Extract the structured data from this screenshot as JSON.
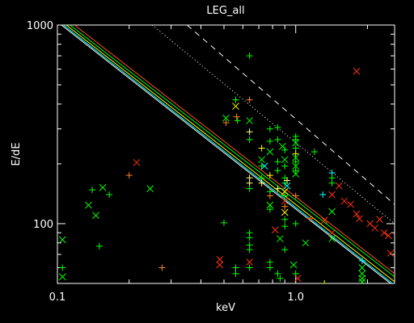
{
  "chart_data": {
    "type": "scatter",
    "title": "LEG_all",
    "xlabel": "keV",
    "ylabel": "E/dE",
    "x_scale": "log",
    "y_scale": "log",
    "xlim": [
      0.1,
      2.6
    ],
    "ylim": [
      50,
      1000
    ],
    "x_ticks": [
      {
        "value": 0.1,
        "label": "0.1"
      },
      {
        "value": 1.0,
        "label": "1.0"
      }
    ],
    "y_ticks": [
      {
        "value": 100,
        "label": "100"
      },
      {
        "value": 1000,
        "label": "1000"
      }
    ],
    "grid": false,
    "lines": [
      {
        "style": "solid",
        "color": "#ffffff",
        "points": [
          [
            0.104,
            1000
          ],
          [
            2.5,
            50
          ]
        ]
      },
      {
        "style": "solid",
        "color": "#ffff00",
        "points": [
          [
            0.109,
            1000
          ],
          [
            2.6,
            51
          ]
        ]
      },
      {
        "style": "solid",
        "color": "#00ff00",
        "points": [
          [
            0.113,
            1000
          ],
          [
            2.6,
            54
          ]
        ]
      },
      {
        "style": "solid",
        "color": "#ff5020",
        "points": [
          [
            0.118,
            1000
          ],
          [
            2.6,
            56
          ]
        ]
      },
      {
        "style": "solid",
        "color": "#00ffff",
        "points": [
          [
            0.106,
            1000
          ],
          [
            2.55,
            50
          ]
        ]
      },
      {
        "style": "dotted",
        "color": "#ffffff",
        "points": [
          [
            0.25,
            1000
          ],
          [
            2.6,
            100
          ]
        ]
      },
      {
        "style": "dashed",
        "color": "#ffffff",
        "points": [
          [
            0.35,
            1000
          ],
          [
            2.6,
            125
          ]
        ]
      }
    ],
    "points": [
      {
        "x": 0.105,
        "y": 83,
        "m": "x",
        "c": "#00ff00"
      },
      {
        "x": 0.105,
        "y": 60,
        "m": "+",
        "c": "#00ff00"
      },
      {
        "x": 0.105,
        "y": 54,
        "m": "x",
        "c": "#00ff00"
      },
      {
        "x": 0.135,
        "y": 124,
        "m": "x",
        "c": "#00ff00"
      },
      {
        "x": 0.14,
        "y": 148,
        "m": "+",
        "c": "#00ff00"
      },
      {
        "x": 0.145,
        "y": 110,
        "m": "x",
        "c": "#00ff00"
      },
      {
        "x": 0.155,
        "y": 152,
        "m": "x",
        "c": "#00ff00"
      },
      {
        "x": 0.15,
        "y": 77,
        "m": "+",
        "c": "#00ff00"
      },
      {
        "x": 0.165,
        "y": 140,
        "m": "+",
        "c": "#00ff00"
      },
      {
        "x": 0.2,
        "y": 175,
        "m": "+",
        "c": "#ff8020"
      },
      {
        "x": 0.215,
        "y": 203,
        "m": "x",
        "c": "#ff3010"
      },
      {
        "x": 0.245,
        "y": 150,
        "m": "x",
        "c": "#00ff00"
      },
      {
        "x": 0.275,
        "y": 60,
        "m": "+",
        "c": "#ff8020"
      },
      {
        "x": 0.48,
        "y": 66,
        "m": "x",
        "c": "#ff3010"
      },
      {
        "x": 0.48,
        "y": 62,
        "m": "x",
        "c": "#ff3010"
      },
      {
        "x": 0.5,
        "y": 101,
        "m": "+",
        "c": "#00ff00"
      },
      {
        "x": 0.51,
        "y": 340,
        "m": "x",
        "c": "#00ff00"
      },
      {
        "x": 0.51,
        "y": 322,
        "m": "+",
        "c": "#ff8020"
      },
      {
        "x": 0.56,
        "y": 390,
        "m": "x",
        "c": "#ffff00"
      },
      {
        "x": 0.56,
        "y": 420,
        "m": "+",
        "c": "#00ff00"
      },
      {
        "x": 0.565,
        "y": 345,
        "m": "+",
        "c": "#ff8020"
      },
      {
        "x": 0.57,
        "y": 330,
        "m": "+",
        "c": "#00ff00"
      },
      {
        "x": 0.56,
        "y": 60,
        "m": "+",
        "c": "#00ff00"
      },
      {
        "x": 0.56,
        "y": 56,
        "m": "+",
        "c": "#00ff00"
      },
      {
        "x": 0.64,
        "y": 700,
        "m": "+",
        "c": "#00ff00"
      },
      {
        "x": 0.64,
        "y": 420,
        "m": "+",
        "c": "#ff8020"
      },
      {
        "x": 0.64,
        "y": 330,
        "m": "x",
        "c": "#00ff00"
      },
      {
        "x": 0.64,
        "y": 290,
        "m": "+",
        "c": "#ffff80"
      },
      {
        "x": 0.64,
        "y": 265,
        "m": "+",
        "c": "#00ff00"
      },
      {
        "x": 0.64,
        "y": 170,
        "m": "+",
        "c": "#ffff80"
      },
      {
        "x": 0.64,
        "y": 160,
        "m": "+",
        "c": "#ffff80"
      },
      {
        "x": 0.64,
        "y": 150,
        "m": "+",
        "c": "#00ff00"
      },
      {
        "x": 0.64,
        "y": 90,
        "m": "+",
        "c": "#00ff00"
      },
      {
        "x": 0.64,
        "y": 85,
        "m": "+",
        "c": "#00ff00"
      },
      {
        "x": 0.64,
        "y": 78,
        "m": "+",
        "c": "#00ff00"
      },
      {
        "x": 0.64,
        "y": 74,
        "m": "+",
        "c": "#00ff00"
      },
      {
        "x": 0.64,
        "y": 64,
        "m": "x",
        "c": "#ff3010"
      },
      {
        "x": 0.64,
        "y": 60,
        "m": "+",
        "c": "#00ff00"
      },
      {
        "x": 0.72,
        "y": 240,
        "m": "+",
        "c": "#ffff00"
      },
      {
        "x": 0.72,
        "y": 210,
        "m": "x",
        "c": "#00ff00"
      },
      {
        "x": 0.72,
        "y": 195,
        "m": "+",
        "c": "#00ff00"
      },
      {
        "x": 0.72,
        "y": 170,
        "m": "+",
        "c": "#00ff00"
      },
      {
        "x": 0.72,
        "y": 160,
        "m": "+",
        "c": "#ffff80"
      },
      {
        "x": 0.74,
        "y": 195,
        "m": "x",
        "c": "#00ffff"
      },
      {
        "x": 0.78,
        "y": 300,
        "m": "+",
        "c": "#00ff00"
      },
      {
        "x": 0.78,
        "y": 260,
        "m": "+",
        "c": "#00ff00"
      },
      {
        "x": 0.78,
        "y": 230,
        "m": "x",
        "c": "#00ff00"
      },
      {
        "x": 0.78,
        "y": 175,
        "m": "+",
        "c": "#ffff00"
      },
      {
        "x": 0.78,
        "y": 145,
        "m": "+",
        "c": "#00ff00"
      },
      {
        "x": 0.78,
        "y": 138,
        "m": "+",
        "c": "#ff8020"
      },
      {
        "x": 0.78,
        "y": 124,
        "m": "x",
        "c": "#00ff00"
      },
      {
        "x": 0.78,
        "y": 118,
        "m": "+",
        "c": "#00ff00"
      },
      {
        "x": 0.78,
        "y": 64,
        "m": "+",
        "c": "#00ff00"
      },
      {
        "x": 0.78,
        "y": 60,
        "m": "+",
        "c": "#00ff00"
      },
      {
        "x": 0.84,
        "y": 305,
        "m": "+",
        "c": "#00ff00"
      },
      {
        "x": 0.84,
        "y": 265,
        "m": "+",
        "c": "#00ff00"
      },
      {
        "x": 0.84,
        "y": 205,
        "m": "+",
        "c": "#00ff00"
      },
      {
        "x": 0.84,
        "y": 185,
        "m": "+",
        "c": "#00ff00"
      },
      {
        "x": 0.84,
        "y": 150,
        "m": "+",
        "c": "#ffff80"
      },
      {
        "x": 0.82,
        "y": 93,
        "m": "x",
        "c": "#ff3010"
      },
      {
        "x": 0.86,
        "y": 84,
        "m": "x",
        "c": "#00ff00"
      },
      {
        "x": 0.84,
        "y": 56,
        "m": "+",
        "c": "#00ff00"
      },
      {
        "x": 0.86,
        "y": 53,
        "m": "+",
        "c": "#00ff00"
      },
      {
        "x": 0.88,
        "y": 245,
        "m": "x",
        "c": "#00ff00"
      },
      {
        "x": 0.9,
        "y": 235,
        "m": "+",
        "c": "#00ff00"
      },
      {
        "x": 0.9,
        "y": 210,
        "m": "x",
        "c": "#00ff00"
      },
      {
        "x": 0.9,
        "y": 195,
        "m": "+",
        "c": "#00ff00"
      },
      {
        "x": 0.9,
        "y": 170,
        "m": "+",
        "c": "#00ff00"
      },
      {
        "x": 0.9,
        "y": 160,
        "m": "+",
        "c": "#00ff00"
      },
      {
        "x": 0.9,
        "y": 145,
        "m": "x",
        "c": "#ffff00"
      },
      {
        "x": 0.9,
        "y": 138,
        "m": "+",
        "c": "#00ff00"
      },
      {
        "x": 0.9,
        "y": 130,
        "m": "x",
        "c": "#ff3010"
      },
      {
        "x": 0.9,
        "y": 122,
        "m": "+",
        "c": "#ff8020"
      },
      {
        "x": 0.9,
        "y": 114,
        "m": "x",
        "c": "#ffff00"
      },
      {
        "x": 0.9,
        "y": 105,
        "m": "+",
        "c": "#00ff00"
      },
      {
        "x": 0.9,
        "y": 97,
        "m": "+",
        "c": "#00ff00"
      },
      {
        "x": 0.9,
        "y": 74,
        "m": "+",
        "c": "#00ff00"
      },
      {
        "x": 0.92,
        "y": 165,
        "m": "+",
        "c": "#ffff80"
      },
      {
        "x": 0.92,
        "y": 155,
        "m": "x",
        "c": "#00ffff"
      },
      {
        "x": 1.0,
        "y": 275,
        "m": "+",
        "c": "#00ff00"
      },
      {
        "x": 1.0,
        "y": 265,
        "m": "+",
        "c": "#00ff00"
      },
      {
        "x": 1.0,
        "y": 255,
        "m": "x",
        "c": "#00ff00"
      },
      {
        "x": 1.0,
        "y": 240,
        "m": "+",
        "c": "#00ff00"
      },
      {
        "x": 1.0,
        "y": 225,
        "m": "+",
        "c": "#ffff00"
      },
      {
        "x": 1.0,
        "y": 215,
        "m": "x",
        "c": "#00ff00"
      },
      {
        "x": 1.0,
        "y": 205,
        "m": "+",
        "c": "#00ff00"
      },
      {
        "x": 1.0,
        "y": 195,
        "m": "x",
        "c": "#00ff00"
      },
      {
        "x": 1.0,
        "y": 185,
        "m": "+",
        "c": "#00ff00"
      },
      {
        "x": 1.0,
        "y": 178,
        "m": "x",
        "c": "#00ff00"
      },
      {
        "x": 1.0,
        "y": 138,
        "m": "+",
        "c": "#ff8020"
      },
      {
        "x": 1.0,
        "y": 100,
        "m": "+",
        "c": "#00ff00"
      },
      {
        "x": 0.98,
        "y": 62,
        "m": "x",
        "c": "#00ff00"
      },
      {
        "x": 1.0,
        "y": 56,
        "m": "+",
        "c": "#00ff00"
      },
      {
        "x": 1.02,
        "y": 53,
        "m": "x",
        "c": "#ff3010"
      },
      {
        "x": 1.02,
        "y": 48,
        "m": "+",
        "c": "#ff8020"
      },
      {
        "x": 1.1,
        "y": 80,
        "m": "x",
        "c": "#00ff00"
      },
      {
        "x": 1.15,
        "y": 106,
        "m": "+",
        "c": "#ff3010"
      },
      {
        "x": 1.2,
        "y": 230,
        "m": "+",
        "c": "#00ff00"
      },
      {
        "x": 1.3,
        "y": 140,
        "m": "+",
        "c": "#00ffff"
      },
      {
        "x": 1.32,
        "y": 104,
        "m": "x",
        "c": "#ff3010"
      },
      {
        "x": 1.32,
        "y": 50,
        "m": "+",
        "c": "#ffff00"
      },
      {
        "x": 1.32,
        "y": 46,
        "m": "+",
        "c": "#ff3010"
      },
      {
        "x": 1.42,
        "y": 180,
        "m": "+",
        "c": "#00ffff"
      },
      {
        "x": 1.42,
        "y": 170,
        "m": "+",
        "c": "#00ff00"
      },
      {
        "x": 1.42,
        "y": 160,
        "m": "+",
        "c": "#00ff00"
      },
      {
        "x": 1.42,
        "y": 140,
        "m": "x",
        "c": "#ff3010"
      },
      {
        "x": 1.42,
        "y": 115,
        "m": "x",
        "c": "#00ff00"
      },
      {
        "x": 1.42,
        "y": 90,
        "m": "x",
        "c": "#ff3010"
      },
      {
        "x": 1.42,
        "y": 84,
        "m": "x",
        "c": "#00ff00"
      },
      {
        "x": 1.52,
        "y": 155,
        "m": "x",
        "c": "#ff3010"
      },
      {
        "x": 1.6,
        "y": 130,
        "m": "x",
        "c": "#ff3010"
      },
      {
        "x": 1.7,
        "y": 125,
        "m": "x",
        "c": "#ff3010"
      },
      {
        "x": 1.8,
        "y": 585,
        "m": "x",
        "c": "#ff3010"
      },
      {
        "x": 1.8,
        "y": 112,
        "m": "x",
        "c": "#ff3010"
      },
      {
        "x": 1.85,
        "y": 106,
        "m": "x",
        "c": "#ff3010"
      },
      {
        "x": 1.9,
        "y": 65,
        "m": "+",
        "c": "#00ffff"
      },
      {
        "x": 1.9,
        "y": 60,
        "m": "x",
        "c": "#00ff00"
      },
      {
        "x": 1.9,
        "y": 56,
        "m": "x",
        "c": "#00ff00"
      },
      {
        "x": 1.9,
        "y": 53,
        "m": "x",
        "c": "#00ff00"
      },
      {
        "x": 1.9,
        "y": 51,
        "m": "x",
        "c": "#00ff00"
      },
      {
        "x": 2.05,
        "y": 100,
        "m": "x",
        "c": "#ff3010"
      },
      {
        "x": 2.15,
        "y": 95,
        "m": "x",
        "c": "#ff3010"
      },
      {
        "x": 2.25,
        "y": 105,
        "m": "x",
        "c": "#ff3010"
      },
      {
        "x": 2.35,
        "y": 90,
        "m": "x",
        "c": "#ff3010"
      },
      {
        "x": 2.45,
        "y": 87,
        "m": "x",
        "c": "#ff3010"
      },
      {
        "x": 2.5,
        "y": 71,
        "m": "x",
        "c": "#ff3010"
      }
    ]
  }
}
